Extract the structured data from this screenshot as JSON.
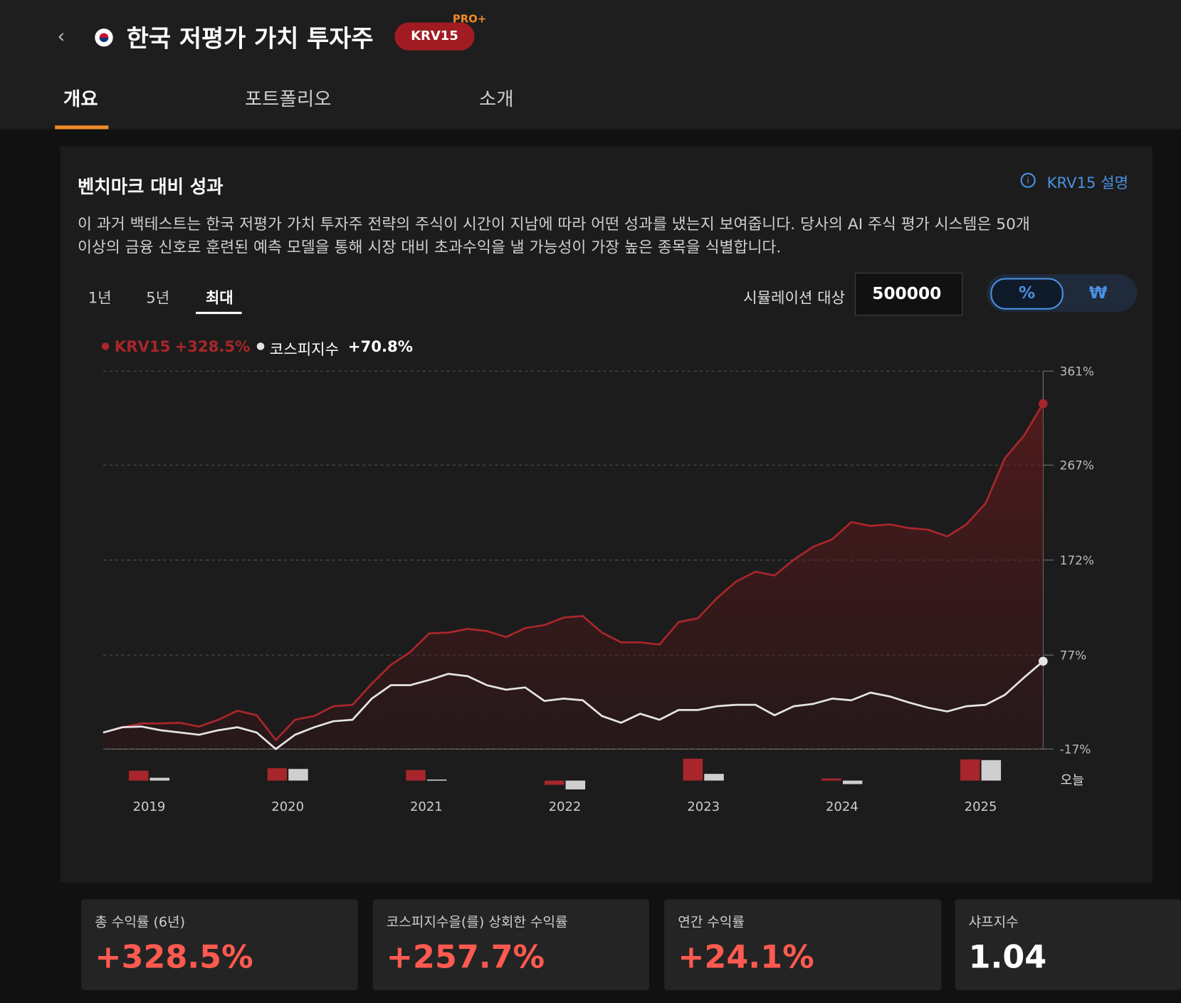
{
  "header": {
    "title": "한국 저평가 가치 투자주",
    "badge": "KRV15",
    "pro": "PRO+"
  },
  "tabs": [
    "개요",
    "포트폴리오",
    "소개"
  ],
  "card": {
    "title": "벤치마크 대비 성과",
    "help": "KRV15 설명",
    "description": [
      "이 과거 백테스트는 한국 저평가 가치 투자주 전략의 주식이 시간이 지남에 따라 어떤 성과를 냈는지 보여줍니다. 당사의 AI 주식 평가 시스템은 50개",
      "이상의 금융 신호로 훈련된 예측 모델을 통해 시장 대비 초과수익을 낼 가능성이 가장 높은 종목을 식별합니다."
    ],
    "periods": [
      "1년",
      "5년",
      "최대"
    ],
    "simulation_label": "시뮬레이션 대상",
    "simulation_value": "500000",
    "units": [
      "%",
      "₩"
    ]
  },
  "chart_data": [
    {
      "type": "line",
      "categories": [
        null,
        null,
        null,
        null,
        null,
        null,
        null,
        null,
        null,
        null,
        null,
        null,
        null,
        null,
        null,
        null,
        null,
        null,
        null,
        null,
        null,
        null,
        null,
        null,
        null,
        null,
        null,
        null,
        null,
        null,
        null,
        null,
        null,
        null,
        null,
        null,
        null,
        null,
        null,
        null,
        null,
        null,
        null,
        null,
        null,
        null,
        null,
        null,
        null,
        null
      ],
      "series": [
        {
          "name": "KRV15",
          "legend_label": "+328.5%",
          "color": "#a8262b",
          "values": [
            -0.5,
            4.8,
            8.6,
            8.6,
            9.3,
            5.5,
            12.3,
            21.3,
            16.8,
            -8,
            12.3,
            16.1,
            25.8,
            27.3,
            48.4,
            67.2,
            79.9,
            98.7,
            99.5,
            103.2,
            101,
            95,
            104,
            107,
            114.5,
            116,
            99.5,
            89.7,
            89.7,
            87.5,
            110,
            113.8,
            134,
            150.6,
            160.4,
            156.6,
            172.4,
            185.2,
            192.7,
            210,
            206.2,
            207.7,
            204,
            202.4,
            195.7,
            207.7,
            228.7,
            273.8,
            296.4,
            328.5
          ]
        },
        {
          "name": "코스피지수",
          "legend_label": "+70.8%",
          "color": "#e4e4e4",
          "values": [
            -0.5,
            4.8,
            5.5,
            1.8,
            -0.5,
            -2.7,
            1.8,
            4.8,
            -0.5,
            -17,
            -2.7,
            4.8,
            10.8,
            12.3,
            33.4,
            46.9,
            46.9,
            52.1,
            58.2,
            55.9,
            46.9,
            42.4,
            44.6,
            31.1,
            33.4,
            31.8,
            16.1,
            9.3,
            18.3,
            12.3,
            22.1,
            22.1,
            25.8,
            27.3,
            27.3,
            16.8,
            25.8,
            28.1,
            33.4,
            31.8,
            39.4,
            35.6,
            29.6,
            24.3,
            20.6,
            25.8,
            27.3,
            37.1,
            54.4,
            70.8
          ]
        }
      ],
      "ylim": [
        -17,
        361
      ],
      "yticks": [
        {
          "value": -17,
          "label": "-17%"
        },
        {
          "value": 77,
          "label": "77%"
        },
        {
          "value": 172,
          "label": "172%"
        },
        {
          "value": 267,
          "label": "267%"
        },
        {
          "value": 361,
          "label": "361%"
        }
      ],
      "grid": true,
      "today_label": "오늘"
    },
    {
      "type": "bar",
      "categories": [
        "2019",
        "2020",
        "2021",
        "2022",
        "2023",
        "2024",
        "2025"
      ],
      "series": [
        {
          "name": "KRV15",
          "color": "#a8262b",
          "values": [
            28,
            35,
            30,
            -12,
            62,
            6,
            60
          ]
        },
        {
          "name": "코스피지수",
          "color": "#cfcfcf",
          "values": [
            8,
            33,
            3,
            -25,
            19,
            -10,
            58
          ]
        }
      ]
    }
  ],
  "stats": [
    {
      "label": "총 수익률 (6년)",
      "value": "+328.5%"
    },
    {
      "label": "코스피지수을(를) 상회한 수익률",
      "value": "+257.7%"
    },
    {
      "label": "연간 수익률",
      "value": "+24.1%"
    },
    {
      "label": "샤프지수",
      "value": "1.04"
    }
  ]
}
